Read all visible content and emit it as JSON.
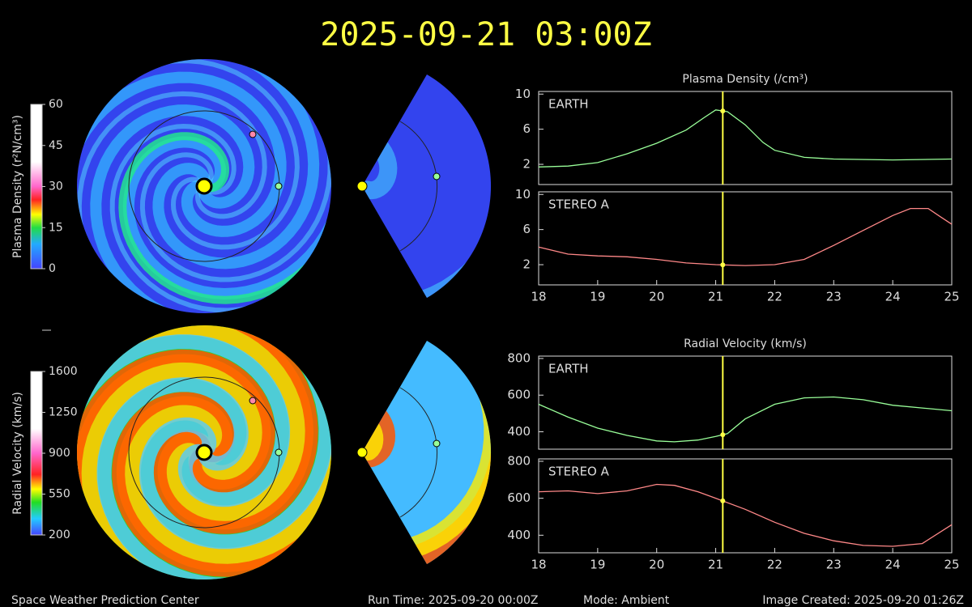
{
  "title": "2025-09-21 03:00Z",
  "footer": {
    "center": "Space Weather Prediction Center",
    "run_time": "Run Time: 2025-09-20 00:00Z",
    "mode": "Mode: Ambient",
    "created": "Image Created: 2025-09-20 01:26Z"
  },
  "colorbars": [
    {
      "label": "Plasma Density (r²N/cm³)",
      "lim": [
        0,
        60
      ],
      "ticks": [
        0,
        15,
        30,
        45,
        60
      ]
    },
    {
      "label": "Radial Velocity (km/s)",
      "lim": [
        200,
        1600
      ],
      "ticks": [
        200,
        550,
        900,
        1250,
        1600
      ]
    }
  ],
  "chart_data": [
    {
      "type": "line",
      "title": "Plasma Density (/cm³)",
      "xlim": [
        18,
        25
      ],
      "ylim": [
        -0.3,
        10.3
      ],
      "yticks": [
        2,
        6,
        10
      ],
      "vline_x": 21.12,
      "vline_color": "#ffff44",
      "x": [
        18,
        18.5,
        19,
        19.5,
        20,
        20.5,
        20.8,
        21,
        21.2,
        21.5,
        21.8,
        22,
        22.5,
        23,
        24,
        25
      ],
      "series": [
        {
          "name": "EARTH",
          "color": "#99ff99",
          "values": [
            1.7,
            1.8,
            2.2,
            3.2,
            4.4,
            5.9,
            7.3,
            8.2,
            8.0,
            6.5,
            4.5,
            3.6,
            2.8,
            2.6,
            2.5,
            2.6
          ]
        }
      ]
    },
    {
      "type": "line",
      "xlim": [
        18,
        25
      ],
      "ylim": [
        -0.3,
        10.3
      ],
      "yticks": [
        2,
        6,
        10
      ],
      "xticks": [
        18,
        19,
        20,
        21,
        22,
        23,
        24,
        25
      ],
      "vline_x": 21.12,
      "vline_color": "#ffff44",
      "x": [
        18,
        18.5,
        19,
        19.5,
        20,
        20.5,
        21,
        21.5,
        22,
        22.5,
        23,
        23.5,
        24,
        24.3,
        24.6,
        24.8,
        25
      ],
      "series": [
        {
          "name": "STEREO A",
          "color": "#ff8888",
          "values": [
            4.0,
            3.2,
            3.0,
            2.9,
            2.6,
            2.2,
            2.0,
            1.9,
            2.0,
            2.6,
            4.2,
            5.9,
            7.6,
            8.4,
            8.4,
            7.5,
            6.6
          ]
        }
      ]
    },
    {
      "type": "line",
      "title": "Radial Velocity (km/s)",
      "xlim": [
        18,
        25
      ],
      "ylim": [
        305,
        813
      ],
      "yticks": [
        400,
        600,
        800
      ],
      "vline_x": 21.12,
      "vline_color": "#ffff44",
      "x": [
        18,
        18.5,
        19,
        19.5,
        20,
        20.3,
        20.7,
        21,
        21.2,
        21.5,
        22,
        22.5,
        23,
        23.5,
        24,
        24.5,
        25
      ],
      "series": [
        {
          "name": "EARTH",
          "color": "#99ff99",
          "values": [
            550,
            480,
            420,
            380,
            350,
            345,
            355,
            375,
            390,
            470,
            550,
            585,
            590,
            575,
            545,
            530,
            515
          ]
        }
      ]
    },
    {
      "type": "line",
      "xlim": [
        18,
        25
      ],
      "ylim": [
        305,
        813
      ],
      "yticks": [
        400,
        600,
        800
      ],
      "xticks": [
        18,
        19,
        20,
        21,
        22,
        23,
        24,
        25
      ],
      "vline_x": 21.12,
      "vline_color": "#ffff44",
      "x": [
        18,
        18.5,
        19,
        19.5,
        20,
        20.3,
        20.7,
        21,
        21.5,
        22,
        22.5,
        23,
        23.5,
        24,
        24.5,
        25
      ],
      "series": [
        {
          "name": "STEREO A",
          "color": "#ff8888",
          "values": [
            635,
            640,
            625,
            640,
            675,
            670,
            635,
            600,
            540,
            470,
            410,
            370,
            345,
            340,
            355,
            457
          ]
        }
      ]
    }
  ]
}
